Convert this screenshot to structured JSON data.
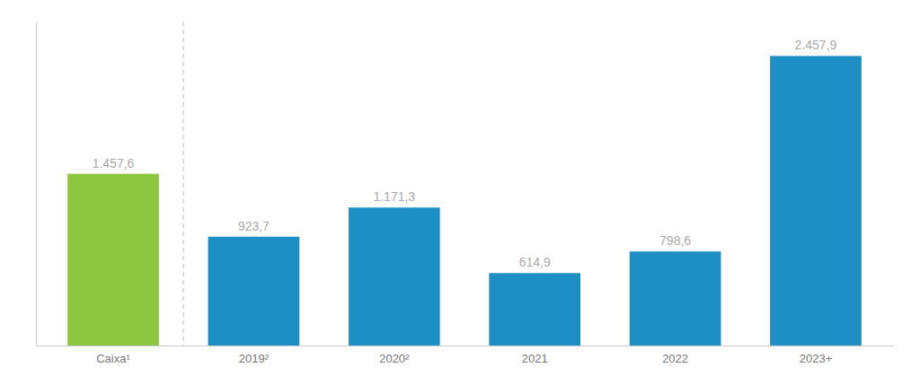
{
  "chart_data": {
    "type": "bar",
    "categories": [
      "Caixa¹",
      "2019²",
      "2020²",
      "2021",
      "2022",
      "2023+"
    ],
    "values": [
      1457.6,
      923.7,
      1171.3,
      614.9,
      798.6,
      2457.9
    ],
    "value_labels": [
      "1.457,6",
      "923,7",
      "1.171,3",
      "614,9",
      "798,6",
      "2.457,9"
    ],
    "colors": [
      "#8DC63F",
      "#1D8FC4",
      "#1D8FC4",
      "#1D8FC4",
      "#1D8FC4",
      "#1D8FC4"
    ],
    "ylim": [
      0,
      2750
    ],
    "data_labels": true,
    "tick_labels": "x"
  }
}
